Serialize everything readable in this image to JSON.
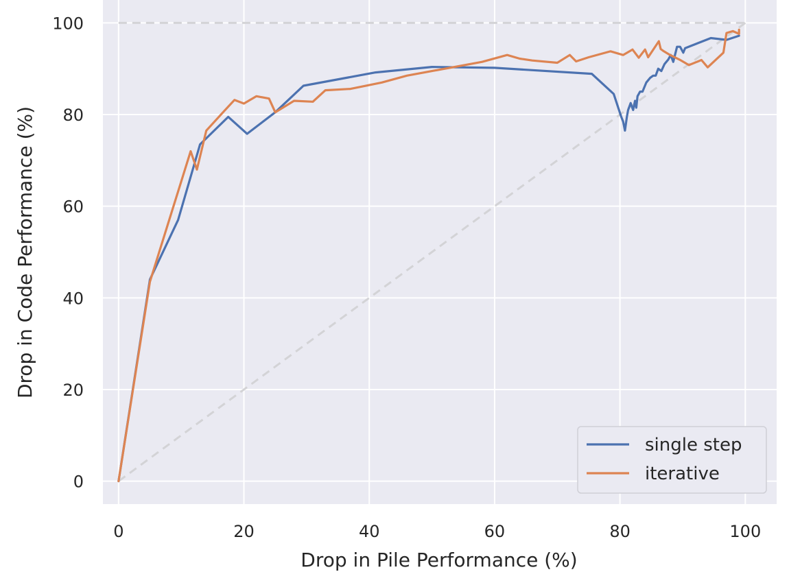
{
  "chart_data": {
    "type": "line",
    "title": "",
    "xlabel": "Drop in Pile Performance (%)",
    "ylabel": "Drop in Code Performance (%)",
    "xlim": [
      -2.5,
      105
    ],
    "ylim": [
      -5,
      105
    ],
    "xticks": [
      0,
      20,
      40,
      60,
      80,
      100
    ],
    "yticks": [
      0,
      20,
      40,
      60,
      80,
      100
    ],
    "xtick_labels": [
      "0",
      "20",
      "40",
      "60",
      "80",
      "100"
    ],
    "ytick_labels": [
      "0",
      "20",
      "40",
      "60",
      "80",
      "100"
    ],
    "grid": true,
    "legend_position": "bottom-right",
    "reference_lines": [
      {
        "name": "diagonal",
        "x": [
          0,
          100
        ],
        "y": [
          0,
          100
        ],
        "style": "dashed",
        "color": "#d3d3d6"
      },
      {
        "name": "upper-bound",
        "x": [
          0,
          100
        ],
        "y": [
          100,
          100
        ],
        "style": "dashed",
        "color": "#d3d3d6"
      }
    ],
    "series": [
      {
        "name": "single step",
        "color": "#4c72b0",
        "x": [
          0,
          5,
          9.5,
          13,
          17.5,
          20.5,
          25,
          29.5,
          41,
          50,
          60,
          75.5,
          79,
          80.2,
          80.5,
          80.8,
          81.1,
          81.3,
          81.7,
          82.1,
          82.4,
          82.6,
          82.8,
          83.2,
          83.6,
          84.2,
          84.8,
          85.3,
          85.7,
          86.1,
          86.6,
          87.1,
          87.4,
          87.7,
          88.1,
          88.5,
          89.1,
          89.6,
          90.1,
          90.4,
          94.5,
          97,
          99
        ],
        "y": [
          0,
          44,
          57,
          73.5,
          79.5,
          75.8,
          80.5,
          86.3,
          89.2,
          90.4,
          90.2,
          88.9,
          84.5,
          79.5,
          78.5,
          76.5,
          79.5,
          81,
          82.5,
          81,
          83,
          81.5,
          84,
          85,
          85,
          87,
          88,
          88.5,
          88.5,
          90,
          89.5,
          91,
          91.5,
          92,
          93,
          91.5,
          94.8,
          94.8,
          93.5,
          94.5,
          96.7,
          96.3,
          97.2
        ]
      },
      {
        "name": "iterative",
        "color": "#dd8452",
        "x": [
          0,
          5,
          11.5,
          12.5,
          14,
          17,
          18.5,
          20,
          22,
          24,
          25,
          28,
          31,
          33,
          37,
          42,
          46,
          50,
          54,
          58,
          62,
          64,
          66,
          70,
          72,
          73,
          75,
          78.5,
          80.5,
          82,
          83,
          84,
          84.5,
          86.2,
          86.5,
          87,
          88,
          89.5,
          91,
          93,
          94,
          96.5,
          97,
          98,
          99,
          99
        ],
        "y": [
          0,
          43.5,
          72,
          68,
          76.5,
          81,
          83.2,
          82.4,
          84,
          83.5,
          80.5,
          83,
          82.8,
          85.3,
          85.6,
          87,
          88.5,
          89.5,
          90.5,
          91.5,
          93,
          92.2,
          91.8,
          91.3,
          93,
          91.6,
          92.5,
          93.8,
          93,
          94.2,
          92.4,
          94.2,
          92.5,
          96,
          94.3,
          93.8,
          93,
          92,
          90.8,
          91.9,
          90.3,
          93.5,
          97.8,
          98.2,
          97.6,
          98.5
        ]
      }
    ]
  }
}
